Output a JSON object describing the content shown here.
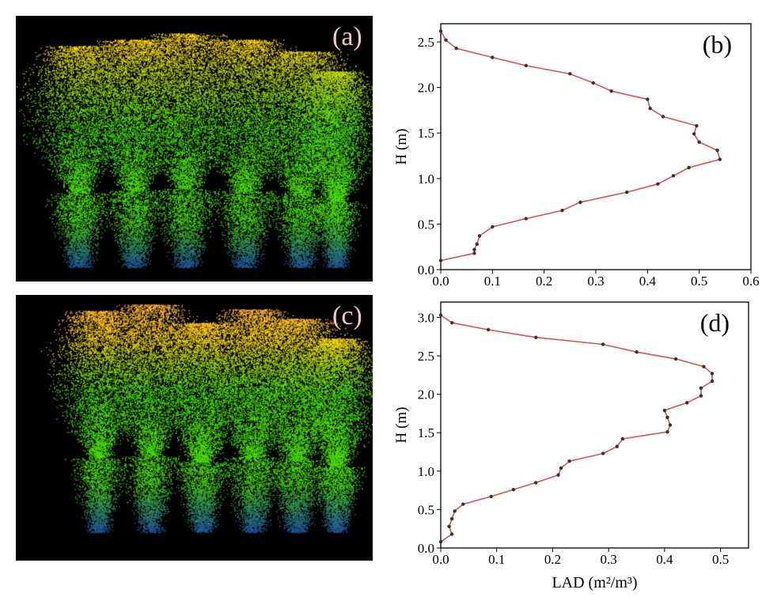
{
  "panels": {
    "a": {
      "label": "(a)"
    },
    "c": {
      "label": "(c)"
    }
  },
  "colors": {
    "line": "#d9534f",
    "marker": "#333333",
    "point_cloud_low": "#1f4fa0",
    "point_cloud_mid": "#4ce000",
    "point_cloud_high": "#ffd700",
    "point_cloud_top": "#ffb040"
  },
  "chart_data": [
    {
      "type": "line",
      "panel_label": "(b)",
      "xlabel": "",
      "ylabel": "H (m)",
      "xlim": [
        0,
        0.6
      ],
      "ylim": [
        0,
        2.7
      ],
      "xticks": [
        "0.0",
        "0.1",
        "0.2",
        "0.3",
        "0.4",
        "0.5",
        "0.6"
      ],
      "yticks": [
        "0.0",
        "0.5",
        "1.0",
        "1.5",
        "2.0",
        "2.5"
      ],
      "points": [
        [
          0.0,
          0.1
        ],
        [
          0.065,
          0.18
        ],
        [
          0.065,
          0.22
        ],
        [
          0.07,
          0.28
        ],
        [
          0.075,
          0.37
        ],
        [
          0.1,
          0.47
        ],
        [
          0.165,
          0.56
        ],
        [
          0.235,
          0.65
        ],
        [
          0.27,
          0.74
        ],
        [
          0.36,
          0.85
        ],
        [
          0.42,
          0.94
        ],
        [
          0.45,
          1.03
        ],
        [
          0.48,
          1.12
        ],
        [
          0.54,
          1.21
        ],
        [
          0.535,
          1.31
        ],
        [
          0.5,
          1.4
        ],
        [
          0.49,
          1.49
        ],
        [
          0.495,
          1.58
        ],
        [
          0.43,
          1.68
        ],
        [
          0.405,
          1.77
        ],
        [
          0.4,
          1.87
        ],
        [
          0.33,
          1.96
        ],
        [
          0.295,
          2.05
        ],
        [
          0.25,
          2.15
        ],
        [
          0.165,
          2.24
        ],
        [
          0.1,
          2.33
        ],
        [
          0.03,
          2.43
        ],
        [
          0.01,
          2.52
        ],
        [
          0.0,
          2.62
        ]
      ]
    },
    {
      "type": "line",
      "panel_label": "(d)",
      "xlabel": "LAD (m²/m³)",
      "ylabel": "H (m)",
      "xlim": [
        0,
        0.55
      ],
      "ylim": [
        0,
        3.2
      ],
      "xticks": [
        "0.0",
        "0.1",
        "0.2",
        "0.3",
        "0.4",
        "0.5"
      ],
      "yticks": [
        "0.0",
        "0.5",
        "1.0",
        "1.5",
        "2.0",
        "2.5",
        "3.0"
      ],
      "points": [
        [
          0.0,
          0.08
        ],
        [
          0.02,
          0.18
        ],
        [
          0.015,
          0.28
        ],
        [
          0.02,
          0.38
        ],
        [
          0.025,
          0.48
        ],
        [
          0.04,
          0.57
        ],
        [
          0.09,
          0.67
        ],
        [
          0.13,
          0.76
        ],
        [
          0.17,
          0.85
        ],
        [
          0.21,
          0.95
        ],
        [
          0.215,
          1.04
        ],
        [
          0.23,
          1.13
        ],
        [
          0.29,
          1.23
        ],
        [
          0.315,
          1.32
        ],
        [
          0.325,
          1.42
        ],
        [
          0.405,
          1.51
        ],
        [
          0.41,
          1.6
        ],
        [
          0.405,
          1.7
        ],
        [
          0.4,
          1.79
        ],
        [
          0.44,
          1.89
        ],
        [
          0.465,
          1.98
        ],
        [
          0.465,
          2.08
        ],
        [
          0.485,
          2.17
        ],
        [
          0.485,
          2.27
        ],
        [
          0.47,
          2.36
        ],
        [
          0.42,
          2.46
        ],
        [
          0.35,
          2.55
        ],
        [
          0.29,
          2.65
        ],
        [
          0.17,
          2.74
        ],
        [
          0.085,
          2.84
        ],
        [
          0.02,
          2.93
        ],
        [
          0.0,
          3.03
        ]
      ]
    }
  ]
}
